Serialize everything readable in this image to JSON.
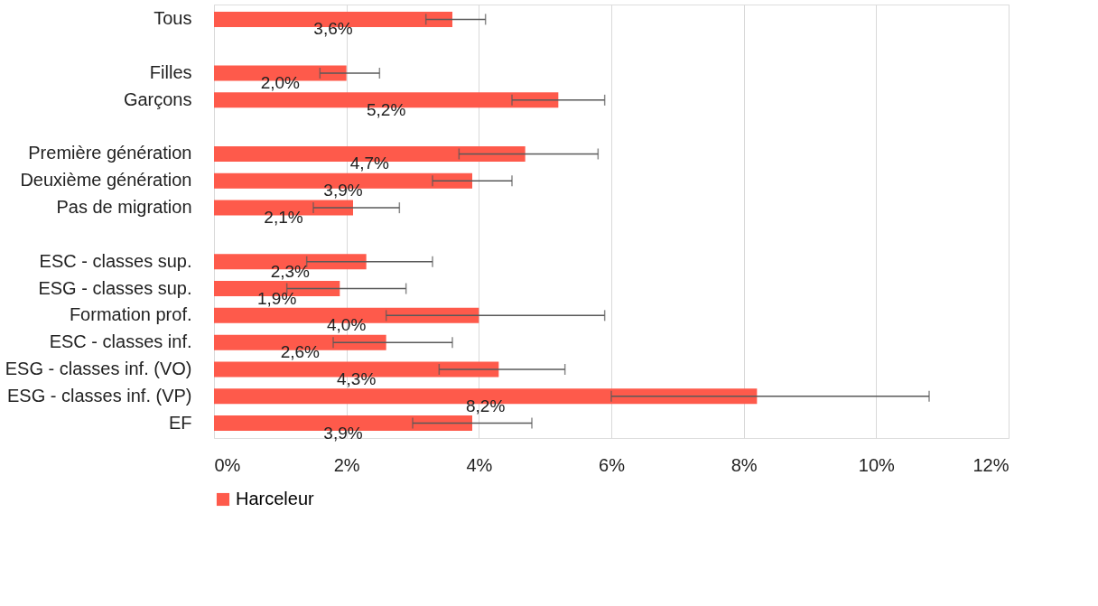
{
  "chart_data": {
    "type": "bar",
    "orientation": "horizontal",
    "categories": [
      "Tous",
      null,
      "Filles",
      "Garçons",
      null,
      "Première génération",
      "Deuxième génération",
      "Pas de migration ",
      null,
      "ESC - classes sup.",
      "ESG - classes sup.",
      "Formation prof.",
      "ESC - classes inf.",
      "ESG - classes inf. (VO)",
      "ESG - classes inf. (VP)",
      "EF"
    ],
    "series": [
      {
        "name": "Harceleur",
        "color": "#fe5a4b",
        "values": [
          3.6,
          null,
          2.0,
          5.2,
          null,
          4.7,
          3.9,
          2.1,
          null,
          2.3,
          1.9,
          4.0,
          2.6,
          4.3,
          8.2,
          3.9
        ],
        "value_labels": [
          "3,6%",
          null,
          "2,0%",
          "5,2%",
          null,
          "4,7%",
          "3,9%",
          "2,1%",
          null,
          "2,3%",
          "1,9%",
          "4,0%",
          "2,6%",
          "4,3%",
          "8,2%",
          "3,9%"
        ],
        "errors": [
          [
            3.2,
            4.1
          ],
          null,
          [
            1.6,
            2.5
          ],
          [
            4.5,
            5.9
          ],
          null,
          [
            3.7,
            5.8
          ],
          [
            3.3,
            4.5
          ],
          [
            1.5,
            2.8
          ],
          null,
          [
            1.4,
            3.3
          ],
          [
            1.1,
            2.9
          ],
          [
            2.6,
            5.9
          ],
          [
            1.8,
            3.6
          ],
          [
            3.4,
            5.3
          ],
          [
            6.0,
            10.8
          ],
          [
            3.0,
            4.8
          ]
        ]
      }
    ],
    "xlim": [
      0,
      12
    ],
    "xticks": [
      {
        "value": 0,
        "label": "0%"
      },
      {
        "value": 2,
        "label": "2%"
      },
      {
        "value": 4,
        "label": "4%"
      },
      {
        "value": 6,
        "label": "6%"
      },
      {
        "value": 8,
        "label": "8%"
      },
      {
        "value": 10,
        "label": "10%"
      },
      {
        "value": 12,
        "label": "12%"
      }
    ],
    "grid": "x",
    "legend": "bottom"
  }
}
